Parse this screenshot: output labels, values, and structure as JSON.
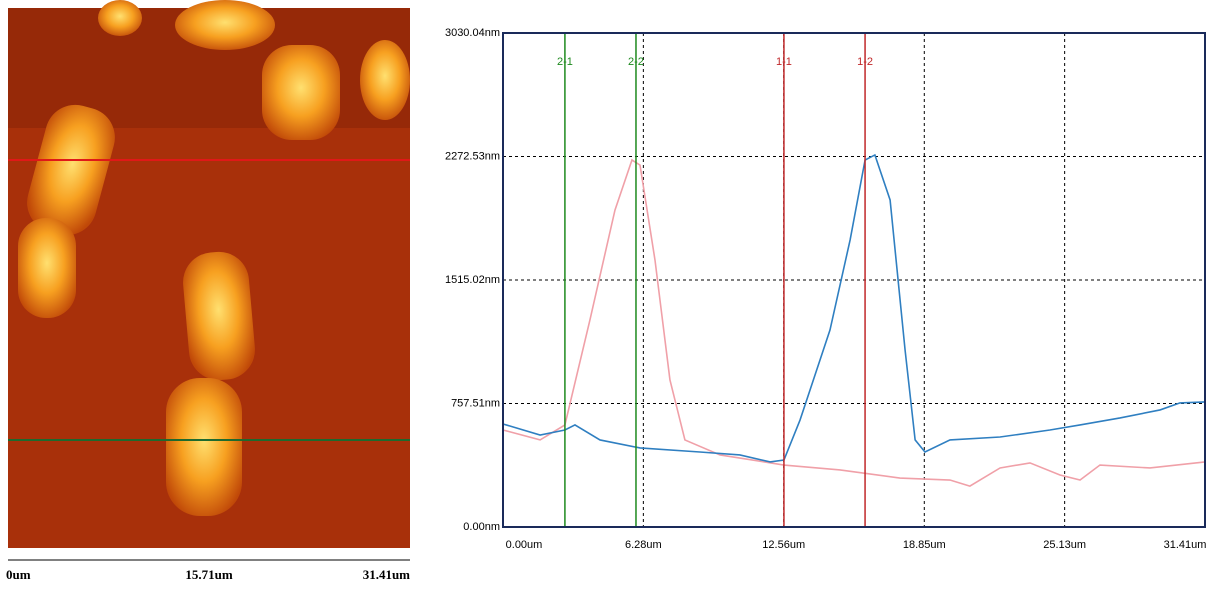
{
  "image": {
    "axis_labels": [
      "0um",
      "15.71um",
      "31.41um"
    ]
  },
  "chart_data": {
    "type": "line",
    "xlim": [
      0,
      31.41
    ],
    "ylim": [
      0,
      3030.04
    ],
    "xticks": [
      {
        "value": 0,
        "label": "0.00um"
      },
      {
        "value": 6.28,
        "label": "6.28um"
      },
      {
        "value": 12.56,
        "label": "12.56um"
      },
      {
        "value": 18.85,
        "label": "18.85um"
      },
      {
        "value": 25.13,
        "label": "25.13um"
      },
      {
        "value": 31.41,
        "label": "31.41um"
      }
    ],
    "yticks": [
      {
        "value": 0,
        "label": "0.00nm"
      },
      {
        "value": 757.51,
        "label": "757.51nm"
      },
      {
        "value": 1515.02,
        "label": "1515.02nm"
      },
      {
        "value": 2272.53,
        "label": "2272.53nm"
      },
      {
        "value": 3030.04,
        "label": "3030.04nm"
      }
    ],
    "grid": true,
    "cursors": [
      {
        "label": "2-1",
        "x": 2.77,
        "color": "#1e8a1e"
      },
      {
        "label": "2-2",
        "x": 5.95,
        "color": "#1e8a1e"
      },
      {
        "label": "1-1",
        "x": 12.57,
        "color": "#c0282a"
      },
      {
        "label": "1-2",
        "x": 16.2,
        "color": "#c0282a"
      }
    ],
    "series": [
      {
        "color": "#2f7fc1",
        "x": [
          0,
          1.66,
          2.77,
          3.22,
          4.34,
          6.13,
          8.81,
          10.6,
          11.95,
          12.57,
          13.29,
          14.63,
          15.53,
          16.2,
          16.64,
          17.32,
          17.99,
          18.44,
          18.88,
          20.0,
          22.24,
          24.47,
          25.82,
          27.61,
          29.4,
          30.29,
          31.41
        ],
        "values": [
          632,
          564,
          595,
          626,
          534,
          485,
          460,
          442,
          399,
          411,
          656,
          1208,
          1760,
          2251,
          2282,
          2006,
          1086,
          534,
          460,
          534,
          552,
          595,
          626,
          669,
          718,
          761,
          767
        ]
      },
      {
        "color": "#f0a0a8",
        "x": [
          0,
          1.66,
          2.77,
          3.89,
          5.01,
          5.77,
          6.13,
          6.8,
          7.47,
          8.14,
          9.71,
          12.57,
          15.08,
          17.76,
          20.0,
          20.89,
          22.24,
          23.58,
          24.92,
          25.82,
          26.71,
          28.95,
          31.41
        ],
        "values": [
          595,
          534,
          626,
          1270,
          1944,
          2251,
          2220,
          1638,
          902,
          534,
          442,
          380,
          350,
          300,
          288,
          251,
          362,
          393,
          319,
          288,
          380,
          362,
          399
        ]
      }
    ]
  }
}
